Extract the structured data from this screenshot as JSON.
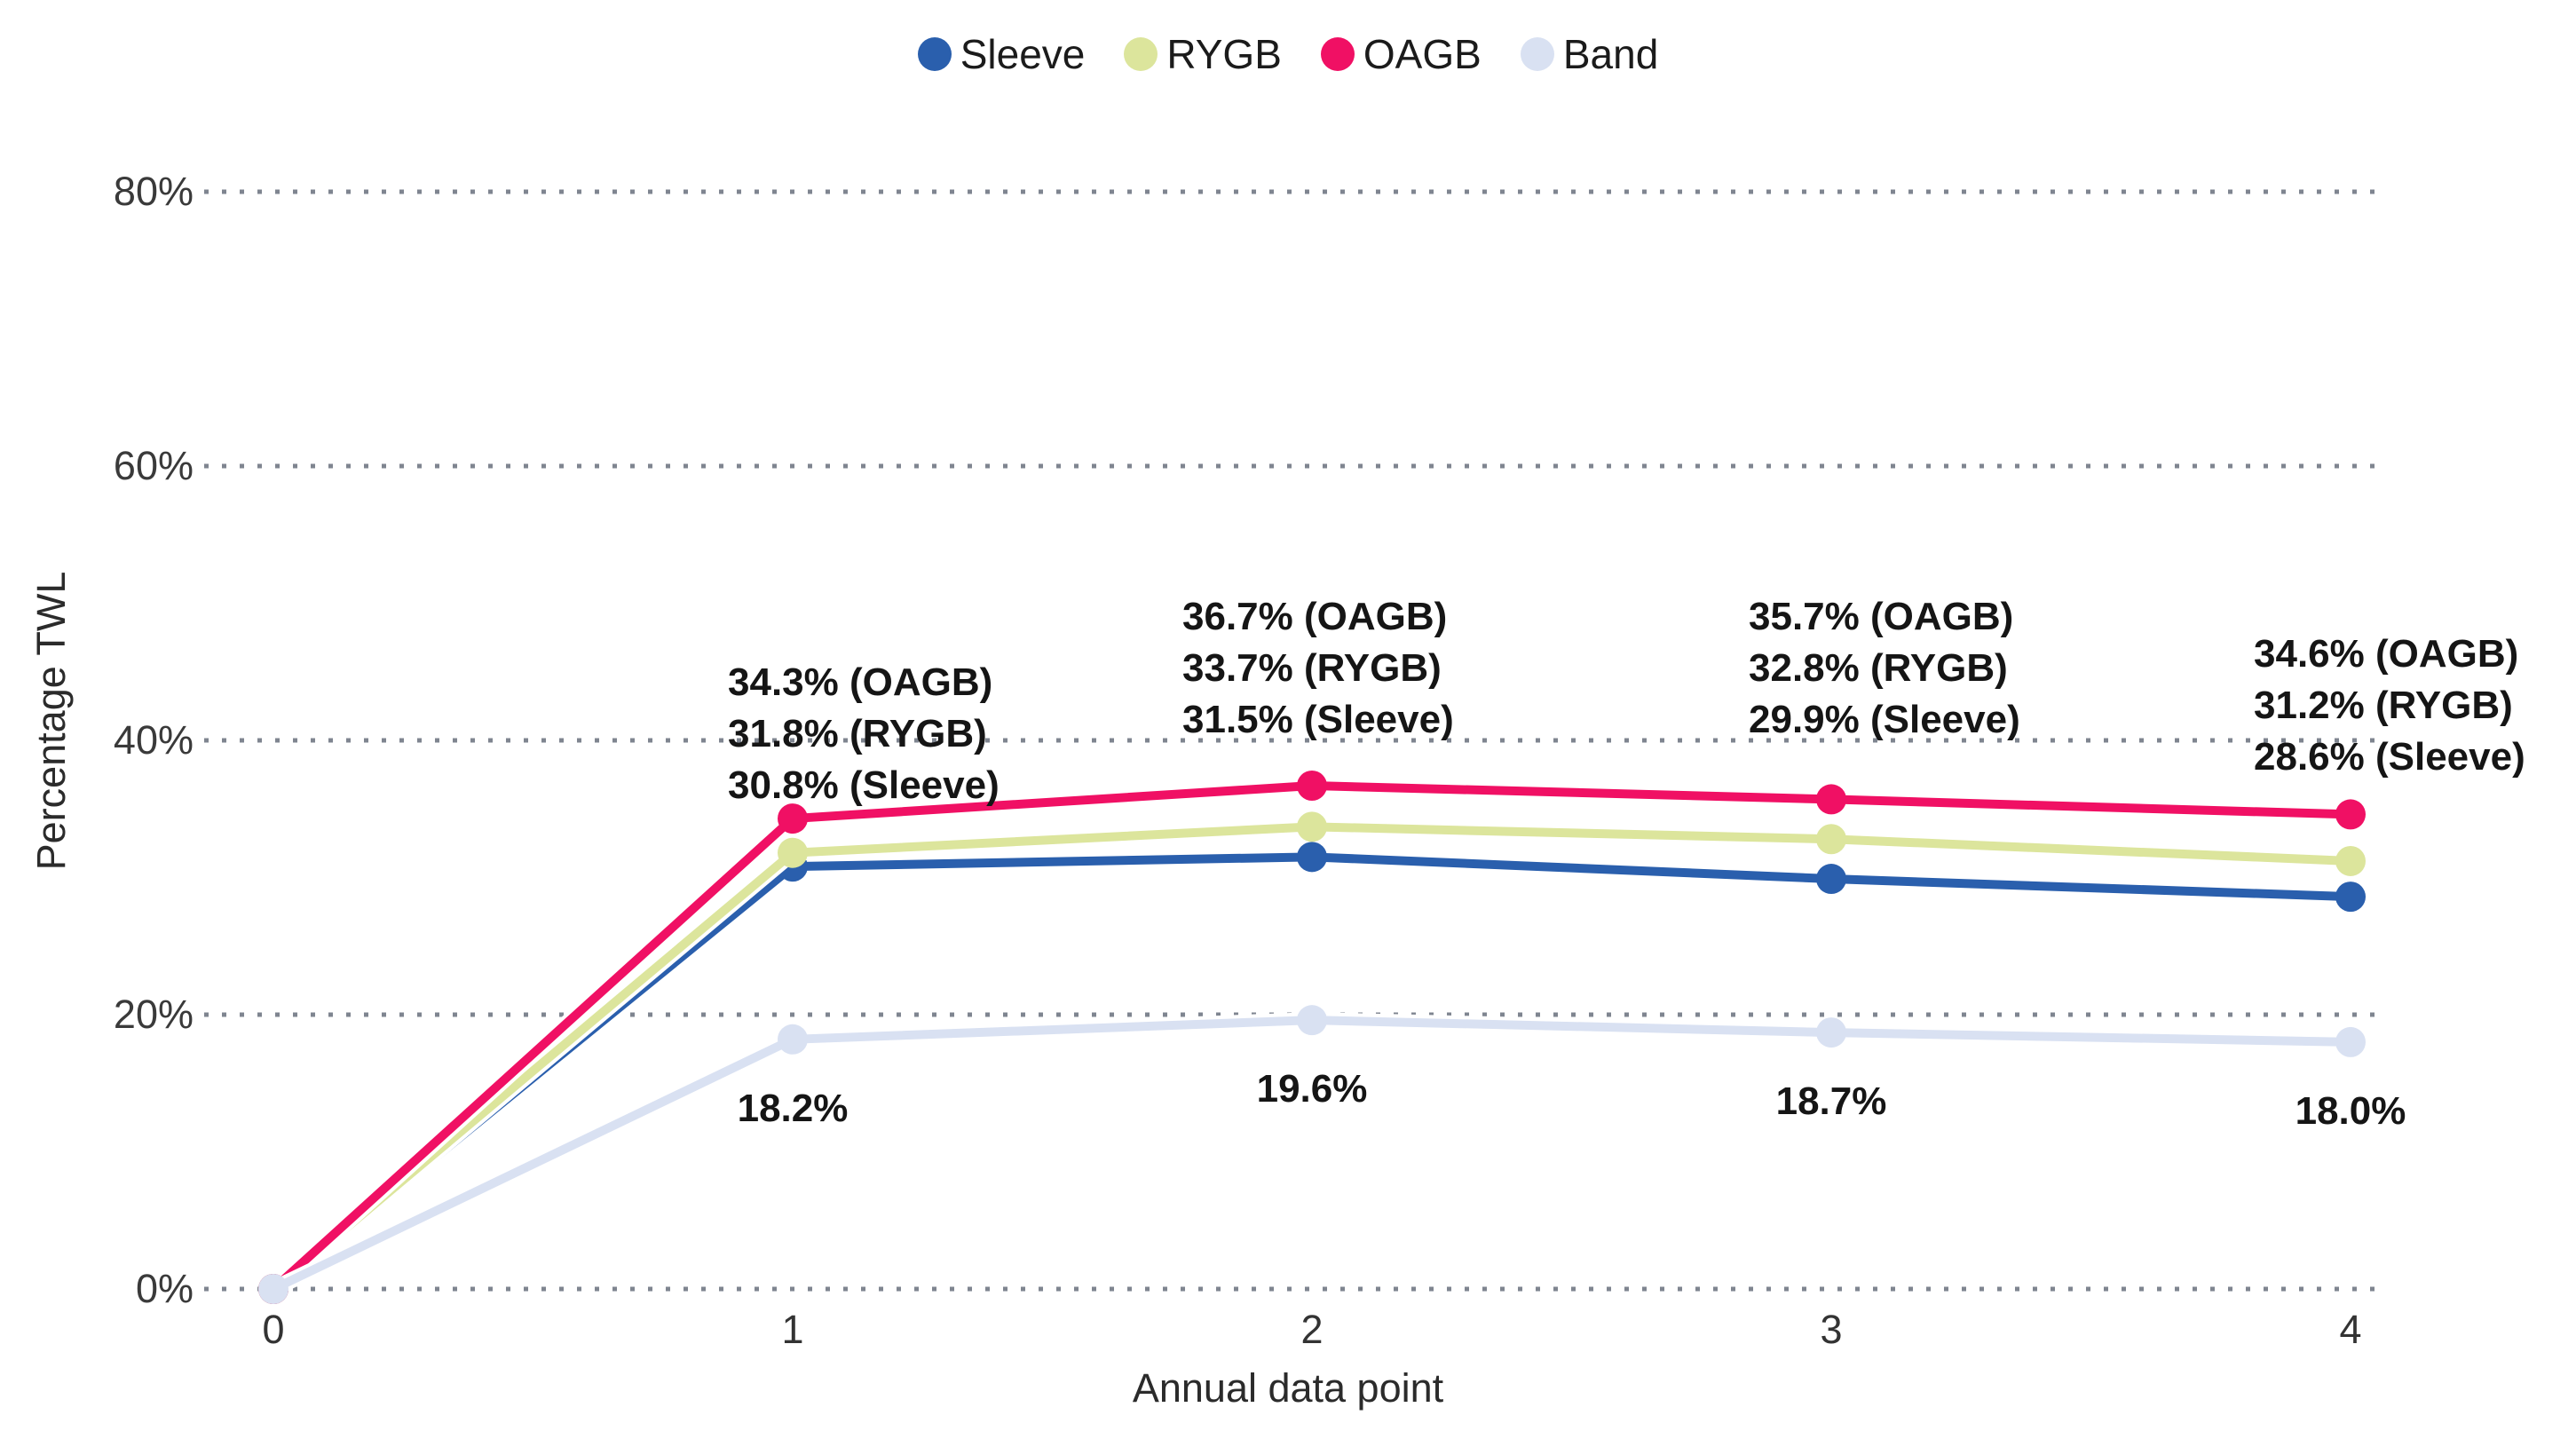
{
  "chart_data": {
    "type": "line",
    "title": "",
    "xlabel": "Annual data point",
    "ylabel": "Percentage TWL",
    "x": [
      0,
      1,
      2,
      3,
      4
    ],
    "x_tick_labels": [
      "0",
      "1",
      "2",
      "3",
      "4"
    ],
    "y_tick_values": [
      0,
      20,
      40,
      60,
      80
    ],
    "y_tick_labels": [
      "0%",
      "20%",
      "40%",
      "60%",
      "80%"
    ],
    "ylim": [
      0,
      85
    ],
    "grid": "horizontal-dotted",
    "legend_position": "top-center",
    "series": [
      {
        "name": "Sleeve",
        "color": "#2a5fad",
        "values": [
          0,
          30.8,
          31.5,
          29.9,
          28.6
        ]
      },
      {
        "name": "RYGB",
        "color": "#dce59c",
        "values": [
          0,
          31.8,
          33.7,
          32.8,
          31.2
        ]
      },
      {
        "name": "OAGB",
        "color": "#f01064",
        "values": [
          0,
          34.3,
          36.7,
          35.7,
          34.6
        ]
      },
      {
        "name": "Band",
        "color": "#d9e1f2",
        "values": [
          0,
          18.2,
          19.6,
          18.7,
          18.0
        ]
      }
    ],
    "annotations": {
      "blocks": [
        {
          "x": 1,
          "lines": [
            "34.3% (OAGB)",
            "31.8% (RYGB)",
            "30.8% (Sleeve)"
          ]
        },
        {
          "x": 2,
          "lines": [
            "36.7% (OAGB)",
            "33.7% (RYGB)",
            "31.5% (Sleeve)"
          ]
        },
        {
          "x": 3,
          "lines": [
            "35.7% (OAGB)",
            "32.8% (RYGB)",
            "29.9% (Sleeve)"
          ]
        },
        {
          "x": 4,
          "lines": [
            "34.6% (OAGB)",
            "31.2% (RYGB)",
            "28.6% (Sleeve)"
          ]
        }
      ],
      "band_labels": [
        {
          "x": 1,
          "text": "18.2%"
        },
        {
          "x": 2,
          "text": "19.6%"
        },
        {
          "x": 3,
          "text": "18.7%"
        },
        {
          "x": 4,
          "text": "18.0%"
        }
      ]
    },
    "grid_color": "#7f8590"
  }
}
